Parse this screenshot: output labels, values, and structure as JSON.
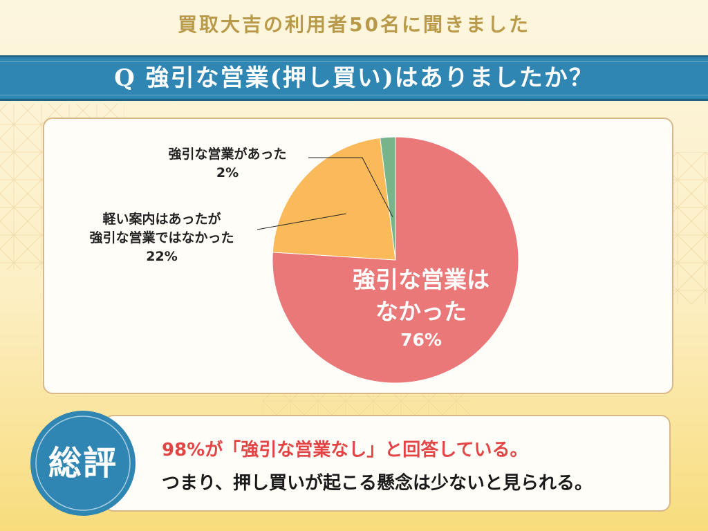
{
  "header": {
    "title": "買取大吉の利用者50名に聞きました"
  },
  "question": {
    "text": "Q  強引な営業(押し買い)はありましたか？"
  },
  "colors": {
    "banner": "#2f86b3",
    "slice_none": "#eb7878",
    "slice_light": "#fbba59",
    "slice_pushy": "#78b48a",
    "accent_red": "#e24545",
    "badge": "#2f86b3"
  },
  "chart_data": {
    "type": "pie",
    "start": "top",
    "direction": "clockwise",
    "slices": [
      {
        "label": "強引な営業は\nなかった",
        "value": 76,
        "pct_label": "76%",
        "color": "#eb7878"
      },
      {
        "label_lines": [
          "軽い案内はあったが",
          "強引な営業ではなかった"
        ],
        "value": 22,
        "pct_label": "22%",
        "color": "#fbba59"
      },
      {
        "label": "強引な営業があった",
        "value": 2,
        "pct_label": "2%",
        "color": "#78b48a"
      }
    ]
  },
  "summary": {
    "badge": "総評",
    "line1": "98%が「強引な営業なし」と回答している。",
    "line2": "つまり、押し買いが起こる懸念は少ないと見られる。"
  }
}
